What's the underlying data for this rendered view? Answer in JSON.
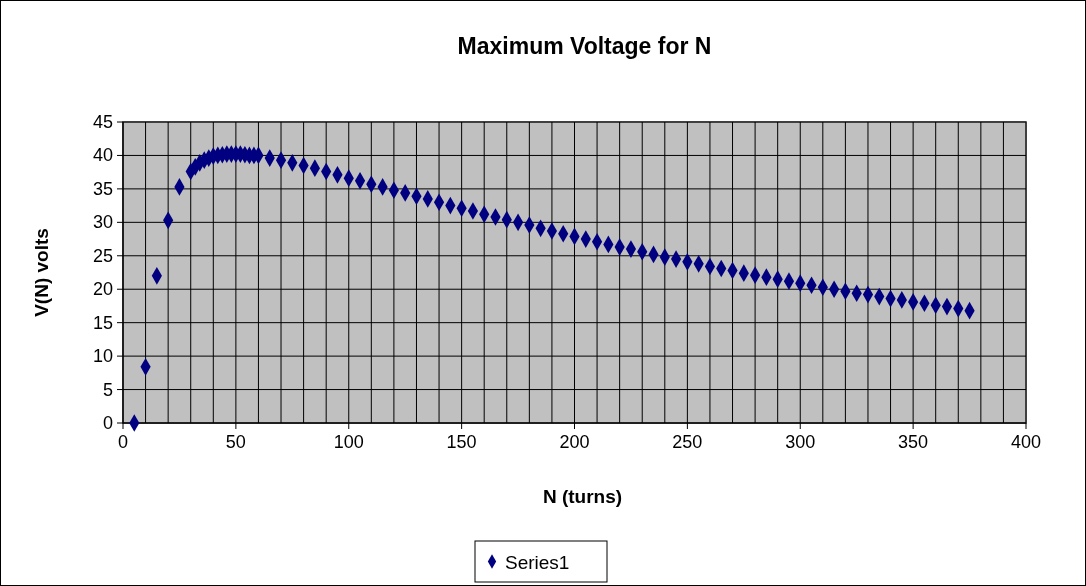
{
  "chart_data": {
    "type": "scatter",
    "title": "Maximum Voltage for N",
    "xlabel": "N (turns)",
    "ylabel": "V(N) volts",
    "xlim": [
      0,
      400
    ],
    "xticks": [
      0,
      50,
      100,
      150,
      200,
      250,
      300,
      350,
      400
    ],
    "ylim": [
      0,
      45
    ],
    "yticks": [
      0,
      5,
      10,
      15,
      20,
      25,
      30,
      35,
      40,
      45
    ],
    "grid": true,
    "legend": "bottom",
    "marker": "diamond",
    "series": [
      {
        "name": "Series1",
        "color": "#000080",
        "x": [
          5,
          10,
          15,
          20,
          25,
          30,
          32,
          34,
          36,
          38,
          40,
          42,
          44,
          46,
          48,
          50,
          52,
          54,
          56,
          58,
          60,
          65,
          70,
          75,
          80,
          85,
          90,
          95,
          100,
          105,
          110,
          115,
          120,
          125,
          130,
          135,
          140,
          145,
          150,
          155,
          160,
          165,
          170,
          175,
          180,
          185,
          190,
          195,
          200,
          205,
          210,
          215,
          220,
          225,
          230,
          235,
          240,
          245,
          250,
          255,
          260,
          265,
          270,
          275,
          280,
          285,
          290,
          295,
          300,
          305,
          310,
          315,
          320,
          325,
          330,
          335,
          340,
          345,
          350,
          355,
          360,
          365,
          370,
          375
        ],
        "values": [
          0,
          8.4,
          22,
          30.3,
          35.3,
          37.6,
          38.3,
          38.9,
          39.3,
          39.6,
          39.9,
          40,
          40.1,
          40.2,
          40.2,
          40.2,
          40.2,
          40.1,
          40,
          40,
          40,
          39.6,
          39.3,
          38.9,
          38.5,
          38.1,
          37.6,
          37.1,
          36.6,
          36.2,
          35.7,
          35.3,
          34.8,
          34.4,
          33.9,
          33.5,
          33,
          32.5,
          32.1,
          31.7,
          31.2,
          30.8,
          30.4,
          30,
          29.6,
          29.1,
          28.7,
          28.3,
          27.9,
          27.5,
          27.1,
          26.7,
          26.3,
          26,
          25.6,
          25.2,
          24.8,
          24.5,
          24.1,
          23.8,
          23.4,
          23.1,
          22.8,
          22.4,
          22.1,
          21.8,
          21.5,
          21.2,
          20.9,
          20.6,
          20.3,
          20,
          19.7,
          19.4,
          19.2,
          18.9,
          18.6,
          18.4,
          18.1,
          17.9,
          17.6,
          17.4,
          17.1,
          16.8
        ]
      }
    ]
  }
}
